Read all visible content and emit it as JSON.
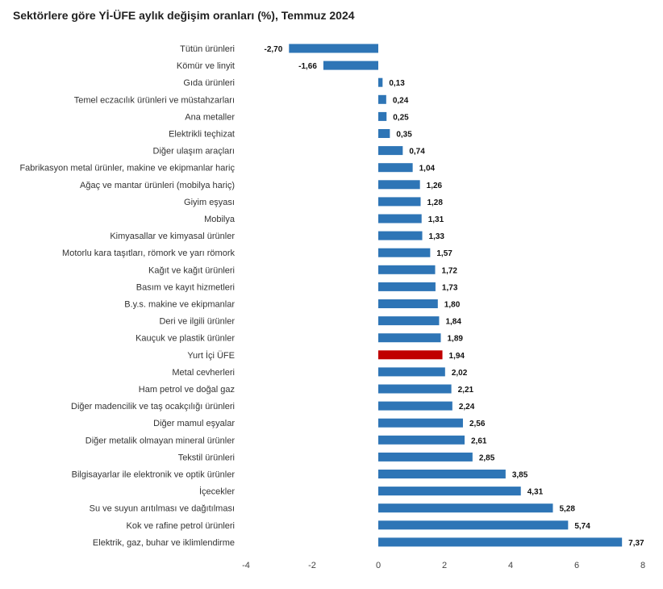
{
  "chart_data": {
    "type": "bar",
    "orientation": "horizontal",
    "title": "Sektörlere göre Yİ-ÜFE aylık değişim oranları (%), Temmuz 2024",
    "categories": [
      "Tütün ürünleri",
      "Kömür ve linyit",
      "Gıda ürünleri",
      "Temel eczacılık ürünleri ve müstahzarları",
      "Ana metaller",
      "Elektrikli teçhizat",
      "Diğer ulaşım araçları",
      "Fabrikasyon metal ürünler, makine ve ekipmanlar hariç",
      "Ağaç ve mantar ürünleri (mobilya hariç)",
      "Giyim eşyası",
      "Mobilya",
      "Kimyasallar ve kimyasal ürünler",
      "Motorlu kara taşıtları, römork ve yarı römork",
      "Kağıt ve kağıt ürünleri",
      "Basım ve kayıt hizmetleri",
      "B.y.s. makine ve ekipmanlar",
      "Deri ve ilgili ürünler",
      "Kauçuk ve plastik ürünler",
      "Yurt İçi ÜFE",
      "Metal cevherleri",
      "Ham petrol ve doğal gaz",
      "Diğer madencilik ve taş ocakçılığı ürünleri",
      "Diğer mamul eşyalar",
      "Diğer metalik olmayan mineral ürünler",
      "Tekstil ürünleri",
      "Bilgisayarlar ile elektronik ve optik ürünler",
      "İçecekler",
      "Su ve suyun arıtılması ve dağıtılması",
      "Kok ve rafine petrol ürünleri",
      "Elektrik, gaz, buhar ve iklimlendirme"
    ],
    "values": [
      -2.7,
      -1.66,
      0.13,
      0.24,
      0.25,
      0.35,
      0.74,
      1.04,
      1.26,
      1.28,
      1.31,
      1.33,
      1.57,
      1.72,
      1.73,
      1.8,
      1.84,
      1.89,
      1.94,
      2.02,
      2.21,
      2.24,
      2.56,
      2.61,
      2.85,
      3.85,
      4.31,
      5.28,
      5.74,
      7.37
    ],
    "value_labels": [
      "-2,70",
      "-1,66",
      "0,13",
      "0,24",
      "0,25",
      "0,35",
      "0,74",
      "1,04",
      "1,26",
      "1,28",
      "1,31",
      "1,33",
      "1,57",
      "1,72",
      "1,73",
      "1,80",
      "1,84",
      "1,89",
      "1,94",
      "2,02",
      "2,21",
      "2,24",
      "2,56",
      "2,61",
      "2,85",
      "3,85",
      "4,31",
      "5,28",
      "5,74",
      "7,37"
    ],
    "highlight_category": "Yurt İçi ÜFE",
    "xlim": [
      -4,
      8
    ],
    "xticks": [
      -4,
      -2,
      0,
      2,
      4,
      6,
      8
    ],
    "xtick_labels": [
      "-4",
      "-2",
      "0",
      "2",
      "4",
      "6",
      "8"
    ],
    "grid": false,
    "legend": "none",
    "colors": {
      "bar": "#2e75b6",
      "highlight": "#c00000"
    }
  }
}
